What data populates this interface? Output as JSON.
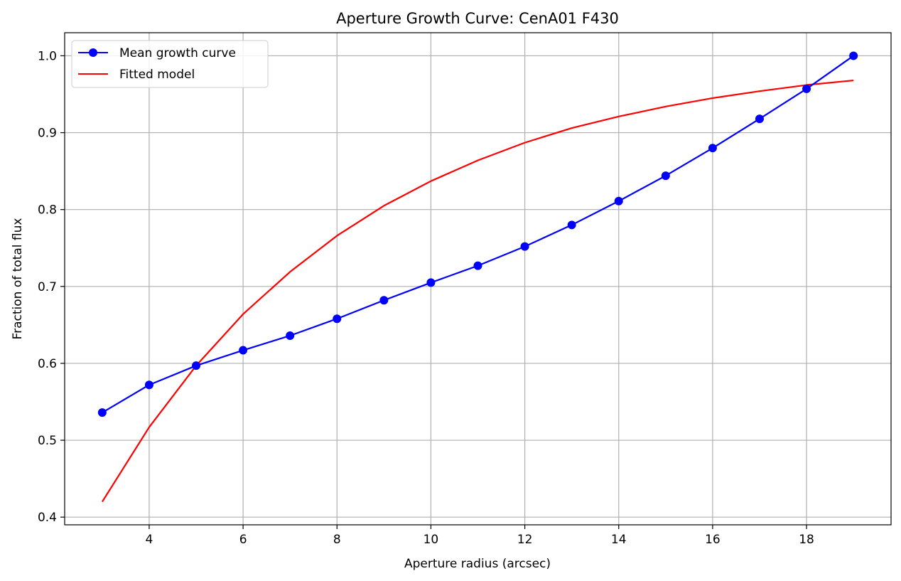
{
  "chart_data": {
    "type": "line",
    "title": "Aperture Growth Curve: CenA01 F430",
    "xlabel": "Aperture radius (arcsec)",
    "ylabel": "Fraction of total flux",
    "xlim": [
      2.2,
      19.8
    ],
    "ylim": [
      0.39,
      1.03
    ],
    "xticks": [
      4,
      6,
      8,
      10,
      12,
      14,
      16,
      18
    ],
    "yticks": [
      0.4,
      0.5,
      0.6,
      0.7,
      0.8,
      0.9,
      1.0
    ],
    "xtick_labels": [
      "4",
      "6",
      "8",
      "10",
      "12",
      "14",
      "16",
      "18"
    ],
    "ytick_labels": [
      "0.4",
      "0.5",
      "0.6",
      "0.7",
      "0.8",
      "0.9",
      "1.0"
    ],
    "grid": true,
    "legend_position": "upper-left",
    "series": [
      {
        "name": "Mean growth curve",
        "color": "#0000ff",
        "marker": "circle",
        "x": [
          3,
          4,
          5,
          6,
          7,
          8,
          9,
          10,
          11,
          12,
          13,
          14,
          15,
          16,
          17,
          18,
          19
        ],
        "y": [
          0.536,
          0.572,
          0.597,
          0.617,
          0.636,
          0.658,
          0.682,
          0.705,
          0.727,
          0.752,
          0.78,
          0.811,
          0.844,
          0.88,
          0.918,
          0.957,
          1.0
        ]
      },
      {
        "name": "Fitted model",
        "color": "#ff0000",
        "marker": "none",
        "x": [
          3,
          4,
          5,
          6,
          7,
          8,
          9,
          10,
          11,
          12,
          13,
          14,
          15,
          16,
          17,
          18,
          19
        ],
        "y": [
          0.42,
          0.517,
          0.597,
          0.664,
          0.719,
          0.766,
          0.805,
          0.837,
          0.864,
          0.887,
          0.906,
          0.921,
          0.934,
          0.945,
          0.954,
          0.962,
          0.968
        ]
      }
    ]
  }
}
